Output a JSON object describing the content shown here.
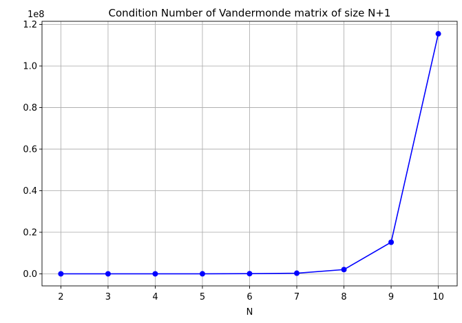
{
  "chart_data": {
    "type": "line",
    "title": "Condition Number of Vandermonde matrix of size N+1",
    "xlabel": "N",
    "ylabel": "",
    "offset_text": "1e8",
    "x": [
      2,
      3,
      4,
      5,
      6,
      7,
      8,
      9,
      10
    ],
    "x_ticks": [
      "2",
      "3",
      "4",
      "5",
      "6",
      "7",
      "8",
      "9",
      "10"
    ],
    "y_ticks": [
      "0.0",
      "0.2",
      "0.4",
      "0.6",
      "0.8",
      "1.0",
      "1.2"
    ],
    "y_tick_values": [
      0.0,
      0.2,
      0.4,
      0.6,
      0.8,
      1.0,
      1.2
    ],
    "xlim": [
      1.6,
      10.4
    ],
    "ylim": [
      -0.058,
      1.215
    ],
    "grid": true,
    "series": [
      {
        "values": [
          1e-07,
          1e-06,
          1e-05,
          0.0001,
          0.0008,
          0.003,
          0.0205,
          0.152,
          1.155
        ],
        "color": "#0000ff",
        "marker": "circle"
      }
    ]
  }
}
